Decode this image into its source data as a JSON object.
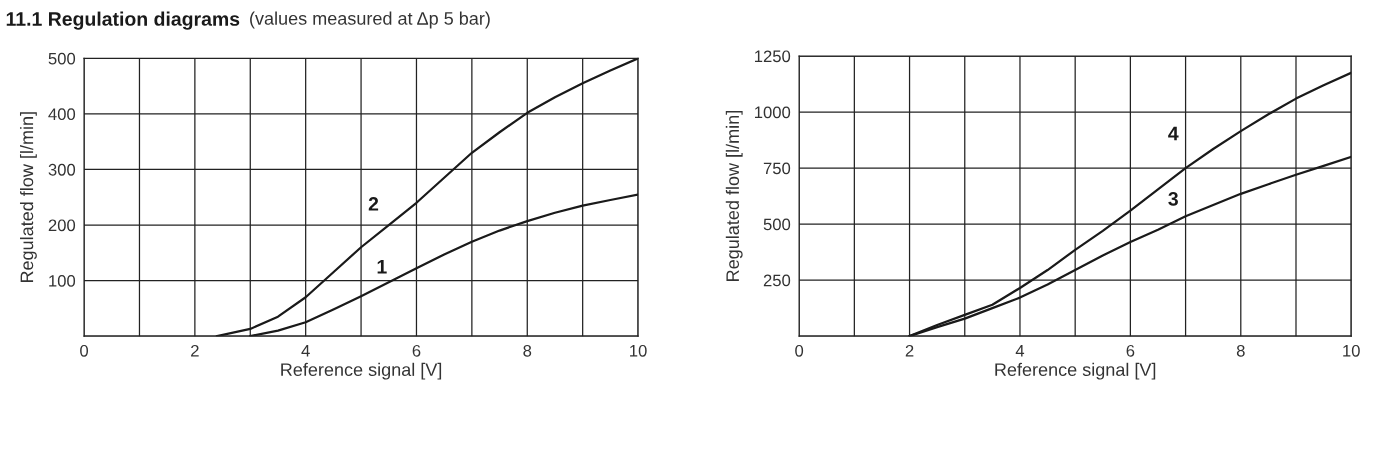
{
  "chart_data": [
    {
      "type": "line",
      "title": "11.1 Regulation diagrams",
      "subtitle": "(values measured at Δp 5 bar)",
      "xlabel": "Reference signal [V]",
      "ylabel": "Regulated flow [l/min]",
      "xlim": [
        0,
        10
      ],
      "ylim": [
        0,
        500
      ],
      "xticks": [
        0,
        {
          "value": 1,
          "label": null
        },
        2,
        {
          "value": 3,
          "label": null
        },
        4,
        {
          "value": 5,
          "label": null
        },
        6,
        {
          "value": 7,
          "label": null
        },
        8,
        {
          "value": 9,
          "label": null
        },
        10
      ],
      "yticks": [
        {
          "value": 0,
          "label": null
        },
        100,
        200,
        300,
        400,
        500
      ],
      "grid": true,
      "series": [
        {
          "name": "1",
          "color": "#1a1a1a",
          "x": [
            3,
            3.5,
            4,
            4.5,
            5,
            5.5,
            6,
            6.5,
            7,
            7.5,
            8,
            8.5,
            9,
            9.5,
            10
          ],
          "values": [
            0,
            10,
            25,
            48,
            72,
            97,
            122,
            147,
            170,
            190,
            207,
            222,
            235,
            245,
            255
          ]
        },
        {
          "name": "2",
          "color": "#1a1a1a",
          "x": [
            2.4,
            3,
            3.5,
            4,
            4.5,
            5,
            5.5,
            6,
            6.5,
            7,
            7.5,
            8,
            8.5,
            9,
            9.5,
            10
          ],
          "values": [
            0,
            13,
            35,
            70,
            115,
            160,
            200,
            240,
            285,
            330,
            367,
            402,
            430,
            455,
            478,
            500
          ]
        }
      ]
    },
    {
      "type": "line",
      "xlabel": "Reference signal [V]",
      "ylabel": "Regulated flow [l/min]",
      "xlim": [
        0,
        10
      ],
      "ylim": [
        0,
        1250
      ],
      "xticks": [
        0,
        {
          "value": 1,
          "label": null
        },
        2,
        {
          "value": 3,
          "label": null
        },
        4,
        {
          "value": 5,
          "label": null
        },
        6,
        {
          "value": 7,
          "label": null
        },
        8,
        {
          "value": 9,
          "label": null
        },
        10
      ],
      "yticks": [
        {
          "value": 0,
          "label": null
        },
        250,
        500,
        750,
        1000,
        1250
      ],
      "grid": true,
      "series": [
        {
          "name": "3",
          "color": "#1a1a1a",
          "x": [
            2,
            2.5,
            3,
            3.5,
            4,
            4.5,
            5,
            5.5,
            6,
            6.5,
            7,
            7.5,
            8,
            8.5,
            9,
            9.5,
            10
          ],
          "values": [
            0,
            40,
            78,
            125,
            172,
            230,
            295,
            360,
            420,
            475,
            535,
            585,
            635,
            678,
            720,
            760,
            800
          ]
        },
        {
          "name": "4",
          "color": "#1a1a1a",
          "x": [
            2,
            2.5,
            3,
            3.5,
            4,
            4.5,
            5,
            5.5,
            6,
            6.5,
            7,
            7.5,
            8,
            8.5,
            9,
            9.5,
            10
          ],
          "values": [
            0,
            50,
            95,
            140,
            215,
            295,
            385,
            470,
            560,
            655,
            750,
            835,
            915,
            990,
            1060,
            1120,
            1175
          ]
        }
      ]
    }
  ]
}
